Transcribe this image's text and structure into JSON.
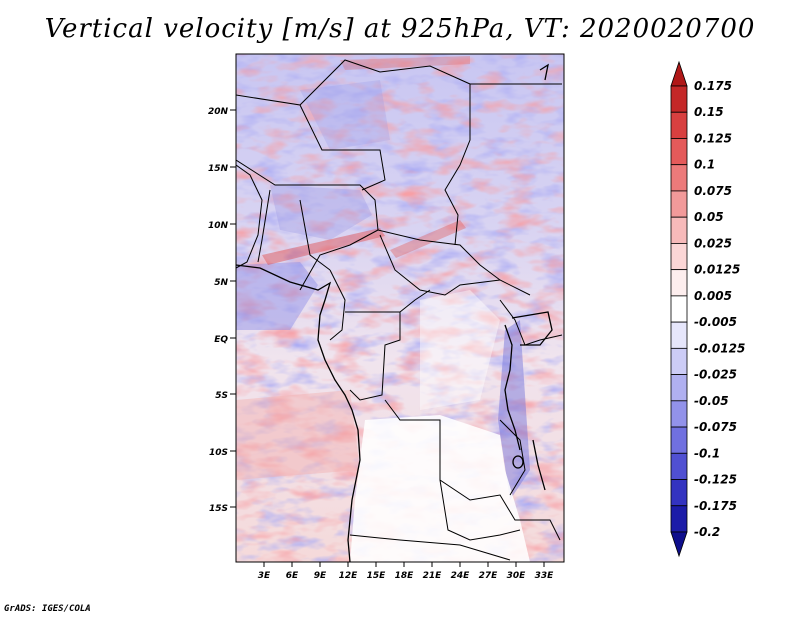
{
  "title": "Vertical velocity [m/s] at 925hPa, VT: 2020020700",
  "credit": "GrADS: IGES/COLA",
  "map": {
    "variable": "Vertical velocity",
    "units": "m/s",
    "level": "925hPa",
    "valid_time": "2020020700",
    "lat_ticks": [
      "20N",
      "15N",
      "10N",
      "5N",
      "EQ",
      "5S",
      "10S",
      "15S"
    ],
    "lon_ticks": [
      "3E",
      "6E",
      "9E",
      "12E",
      "15E",
      "18E",
      "21E",
      "24E",
      "27E",
      "30E",
      "33E"
    ]
  },
  "colorbar": {
    "labels": [
      "0.175",
      "0.15",
      "0.125",
      "0.1",
      "0.075",
      "0.05",
      "0.025",
      "0.0125",
      "0.005",
      "-0.005",
      "-0.0125",
      "-0.025",
      "-0.05",
      "-0.075",
      "-0.1",
      "-0.125",
      "-0.175",
      "-0.2"
    ],
    "colors": [
      "#b01818",
      "#c42828",
      "#d84040",
      "#e45a5a",
      "#ec7a7a",
      "#f29a9a",
      "#f7baba",
      "#fbd6d6",
      "#fdeeee",
      "#ffffff",
      "#e6e6fb",
      "#ccccf6",
      "#b0b0f0",
      "#9292ea",
      "#7070e0",
      "#5050d2",
      "#3333c0",
      "#1c1ca8",
      "#0e0e8c"
    ]
  }
}
